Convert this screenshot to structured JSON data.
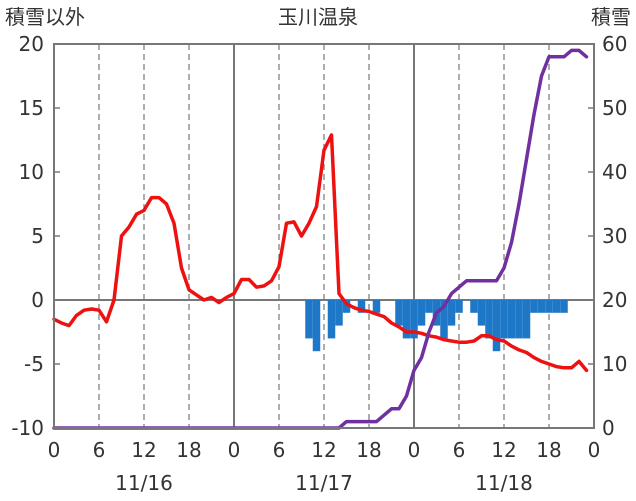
{
  "chart_data": {
    "type": "line",
    "title": "玉川温泉",
    "left_axis_label": "積雪以外",
    "right_axis_label": "積雪",
    "left_ylim": [
      -10,
      20
    ],
    "left_yticks": [
      "20",
      "15",
      "10",
      "5",
      "0",
      "-5",
      "-10"
    ],
    "right_ylim": [
      0,
      60
    ],
    "right_yticks": [
      "60",
      "50",
      "40",
      "30",
      "20",
      "10",
      "0"
    ],
    "x_range_hours": [
      0,
      72
    ],
    "x_tick_labels": [
      "0",
      "6",
      "12",
      "18",
      "0",
      "6",
      "12",
      "18",
      "0",
      "6",
      "12",
      "18",
      "0"
    ],
    "date_labels": [
      "11/16",
      "11/17",
      "11/18"
    ],
    "grid": "vertical",
    "colors": {
      "temperature": "#ee1111",
      "snow_depth": "#7030a0",
      "bars": "#1f77c8",
      "frame": "#777777"
    },
    "series": [
      {
        "key": "temperature",
        "axis": "left",
        "type": "line",
        "x": [
          0,
          1,
          2,
          3,
          4,
          5,
          6,
          7,
          8,
          9,
          10,
          11,
          12,
          13,
          14,
          15,
          16,
          17,
          18,
          19,
          20,
          21,
          22,
          23,
          24,
          25,
          26,
          27,
          28,
          29,
          30,
          31,
          32,
          33,
          34,
          35,
          36,
          37,
          38,
          39,
          40,
          41,
          42,
          43,
          44,
          45,
          46,
          47,
          48,
          49,
          50,
          51,
          52,
          53,
          54,
          55,
          56,
          57,
          58,
          59,
          60,
          61,
          62,
          63,
          64,
          65,
          66,
          67,
          68,
          69,
          70,
          71
        ],
        "values": [
          -1.5,
          -1.8,
          -2.0,
          -1.2,
          -0.8,
          -0.7,
          -0.8,
          -1.7,
          0.0,
          5.0,
          5.7,
          6.7,
          7.0,
          8.0,
          8.0,
          7.5,
          6.0,
          2.5,
          0.8,
          0.4,
          0.0,
          0.2,
          -0.2,
          0.2,
          0.5,
          1.6,
          1.6,
          1.0,
          1.1,
          1.5,
          2.6,
          6.0,
          6.1,
          5.0,
          6.0,
          7.3,
          11.7,
          12.9,
          0.5,
          -0.3,
          -0.6,
          -0.8,
          -0.9,
          -1.1,
          -1.3,
          -1.8,
          -2.1,
          -2.5,
          -2.5,
          -2.6,
          -2.8,
          -2.9,
          -3.1,
          -3.2,
          -3.3,
          -3.3,
          -3.2,
          -2.8,
          -2.8,
          -3.1,
          -3.2,
          -3.6,
          -3.9,
          -4.1,
          -4.5,
          -4.8,
          -5.0,
          -5.2,
          -5.3,
          -5.3,
          -4.8,
          -5.5
        ]
      },
      {
        "key": "snow_depth",
        "axis": "right",
        "type": "line",
        "x": [
          0,
          1,
          2,
          3,
          4,
          5,
          6,
          7,
          8,
          9,
          10,
          11,
          12,
          13,
          14,
          15,
          16,
          17,
          18,
          19,
          20,
          21,
          22,
          23,
          24,
          25,
          26,
          27,
          28,
          29,
          30,
          31,
          32,
          33,
          34,
          35,
          36,
          37,
          38,
          39,
          40,
          41,
          42,
          43,
          44,
          45,
          46,
          47,
          48,
          49,
          50,
          51,
          52,
          53,
          54,
          55,
          56,
          57,
          58,
          59,
          60,
          61,
          62,
          63,
          64,
          65,
          66,
          67,
          68,
          69,
          70,
          71
        ],
        "values": [
          0,
          0,
          0,
          0,
          0,
          0,
          0,
          0,
          0,
          0,
          0,
          0,
          0,
          0,
          0,
          0,
          0,
          0,
          0,
          0,
          0,
          0,
          0,
          0,
          0,
          0,
          0,
          0,
          0,
          0,
          0,
          0,
          0,
          0,
          0,
          0,
          0,
          0,
          0,
          1,
          1,
          1,
          1,
          1,
          2,
          3,
          3,
          5,
          9,
          11,
          15,
          18,
          19,
          21,
          22,
          23,
          23,
          23,
          23,
          23,
          25,
          29,
          35,
          42,
          49,
          55,
          58,
          58,
          58,
          59,
          59,
          58
        ]
      },
      {
        "key": "precipitation_bars",
        "axis": "left",
        "type": "bar",
        "baseline": 0,
        "x": [
          34,
          35,
          37,
          38,
          39,
          41,
          43,
          46,
          47,
          48,
          49,
          50,
          51,
          52,
          53,
          54,
          56,
          57,
          58,
          59,
          60,
          61,
          62,
          63,
          64,
          65,
          66,
          67,
          68
        ],
        "values": [
          -3.0,
          -4.0,
          -3.0,
          -2.0,
          -1.0,
          -1.0,
          -1.0,
          -2.0,
          -3.0,
          -3.0,
          -2.0,
          -1.0,
          -2.0,
          -3.0,
          -2.0,
          -1.0,
          -1.0,
          -2.0,
          -3.0,
          -4.0,
          -3.0,
          -3.0,
          -3.0,
          -3.0,
          -1.0,
          -1.0,
          -1.0,
          -1.0,
          -1.0
        ]
      }
    ]
  }
}
